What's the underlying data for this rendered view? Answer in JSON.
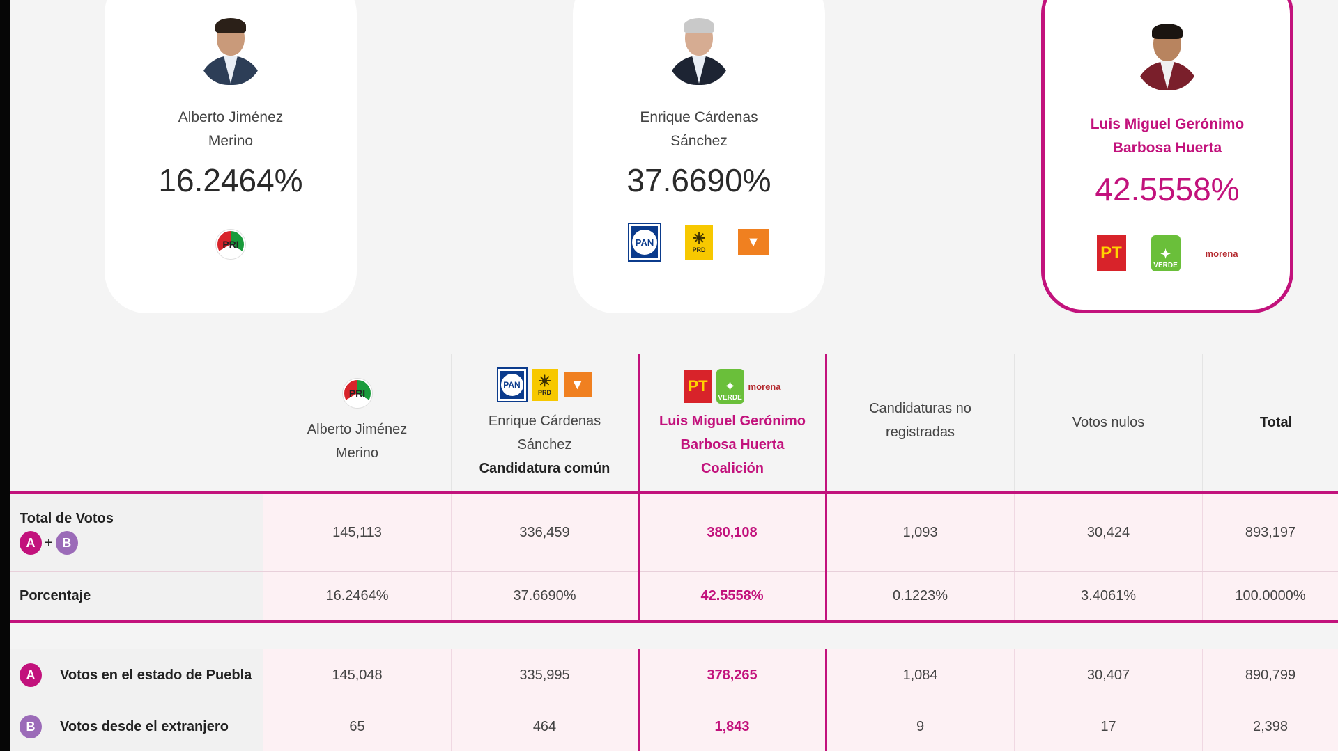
{
  "colors": {
    "accent": "#c2127c",
    "badge_a": "#c2127c",
    "badge_b": "#9b6bb8"
  },
  "cards": [
    {
      "name_line1": "Alberto Jiménez",
      "name_line2": "Merino",
      "percent": "16.2464%",
      "parties": [
        "PRI"
      ],
      "winner": false
    },
    {
      "name_line1": "Enrique Cárdenas",
      "name_line2": "Sánchez",
      "percent": "37.6690%",
      "parties": [
        "PAN",
        "PRD",
        "Movimiento Ciudadano"
      ],
      "winner": false
    },
    {
      "name_line1": "Luis Miguel Gerónimo",
      "name_line2": "Barbosa Huerta",
      "percent": "42.5558%",
      "parties": [
        "PT",
        "VERDE",
        "morena"
      ],
      "winner": true
    }
  ],
  "logo_text": {
    "pri": "PRI",
    "pan": "PAN",
    "prd": "PRD",
    "pt": "PT",
    "verde": "VERDE",
    "morena": "morena"
  },
  "table": {
    "headers": {
      "col1": {
        "line1": "Alberto Jiménez",
        "line2": "Merino"
      },
      "col2": {
        "line1": "Enrique Cárdenas",
        "line2": "Sánchez",
        "line3": "Candidatura común"
      },
      "col3": {
        "line1": "Luis Miguel Gerónimo",
        "line2": "Barbosa Huerta",
        "line3": "Coalición"
      },
      "col4": {
        "line1": "Candidaturas no",
        "line2": "registradas"
      },
      "col5": "Votos nulos",
      "col6": "Total"
    },
    "rows": {
      "total": {
        "label": "Total de Votos",
        "badge_a": "A",
        "plus": "+",
        "badge_b": "B",
        "values": [
          "145,113",
          "336,459",
          "380,108",
          "1,093",
          "30,424",
          "893,197"
        ]
      },
      "porcentaje": {
        "label": "Porcentaje",
        "values": [
          "16.2464%",
          "37.6690%",
          "42.5558%",
          "0.1223%",
          "3.4061%",
          "100.0000%"
        ]
      },
      "estado": {
        "badge": "A",
        "label": "Votos en el estado de Puebla",
        "values": [
          "145,048",
          "335,995",
          "378,265",
          "1,084",
          "30,407",
          "890,799"
        ]
      },
      "extranjero": {
        "badge": "B",
        "label": "Votos desde el extranjero",
        "values": [
          "65",
          "464",
          "1,843",
          "9",
          "17",
          "2,398"
        ]
      }
    }
  }
}
